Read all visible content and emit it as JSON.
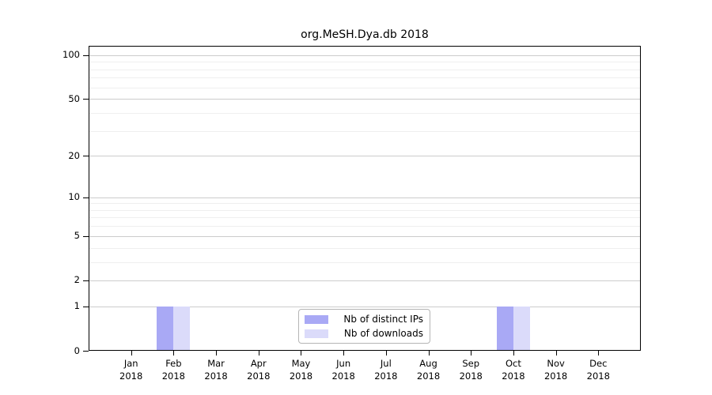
{
  "chart_data": {
    "type": "bar",
    "title": "org.MeSH.Dya.db 2018",
    "categories": [
      "Jan",
      "Feb",
      "Mar",
      "Apr",
      "May",
      "Jun",
      "Jul",
      "Aug",
      "Sep",
      "Oct",
      "Nov",
      "Dec"
    ],
    "x_year_label": "2018",
    "series": [
      {
        "name": "Nb of distinct IPs",
        "color": "#a9a9f5",
        "values": [
          0,
          1,
          0,
          0,
          0,
          0,
          0,
          0,
          0,
          1,
          0,
          0
        ]
      },
      {
        "name": "Nb of downloads",
        "color": "#dbdbfa",
        "values": [
          0,
          1,
          0,
          0,
          0,
          0,
          0,
          0,
          0,
          1,
          0,
          0
        ]
      }
    ],
    "y_scale": "log10(1+x)",
    "y_ticks": [
      0,
      1,
      2,
      5,
      10,
      20,
      50,
      100
    ],
    "ylim": [
      0,
      116
    ],
    "grid": "horizontal major + log minor",
    "legend_position": "bottom-center",
    "colors": {
      "spine": "#000000",
      "major_grid": "#cccccc",
      "minor_grid": "#efefef",
      "text": "#000000"
    }
  }
}
